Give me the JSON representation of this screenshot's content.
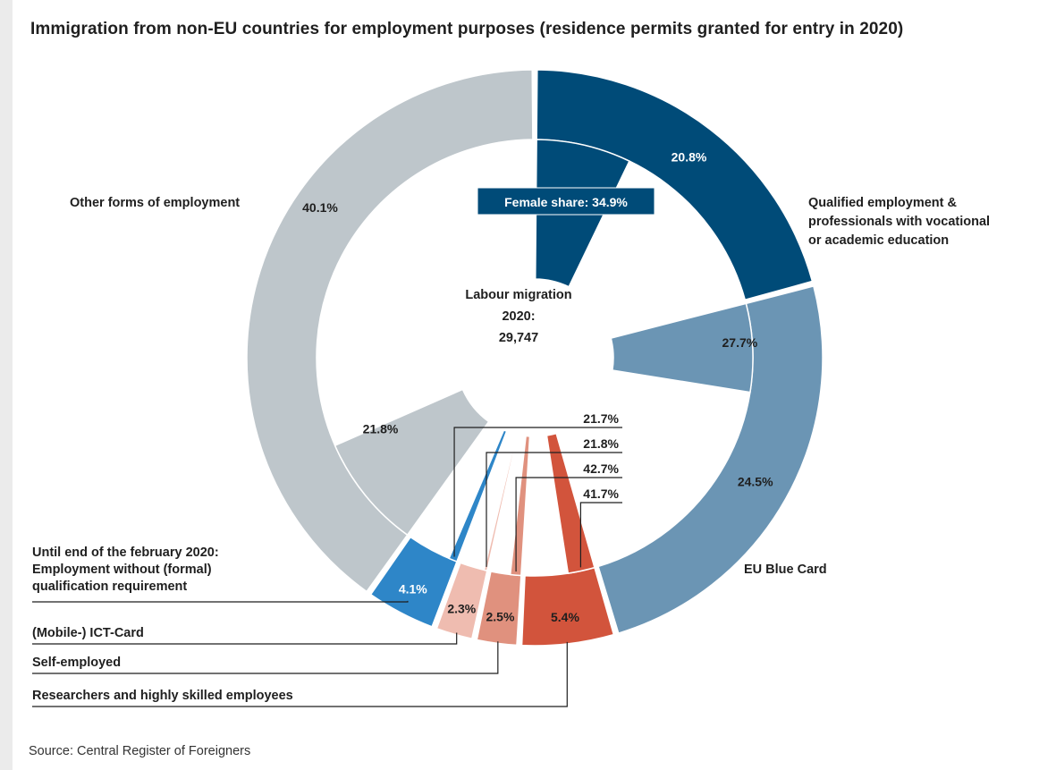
{
  "chart_data": {
    "type": "donut",
    "title": "Immigration from non-EU countries for employment purposes (residence permits granted for entry in 2020)",
    "center_label": [
      "Labour migration",
      "2020:",
      "29,747"
    ],
    "total": 29747,
    "series": [
      {
        "label": "Qualified employment & professionals with vocational or academic education",
        "label_lines": [
          "Qualified employment &",
          "professionals with vocational",
          "or academic education"
        ],
        "share": 20.8,
        "share_label": "20.8%",
        "female_share": 34.9,
        "female_label": "34.9%",
        "color": "#004b78"
      },
      {
        "label": "EU Blue Card",
        "label_lines": [
          "EU Blue Card"
        ],
        "share": 24.5,
        "share_label": "24.5%",
        "female_share": 27.7,
        "female_label": "27.7%",
        "color": "#6b95b4"
      },
      {
        "label": "Researchers and highly skilled employees",
        "label_lines": [
          "Researchers and highly skilled employees"
        ],
        "share": 5.4,
        "share_label": "5.4%",
        "female_share": 41.7,
        "female_label": "41.7%",
        "color": "#d2543c"
      },
      {
        "label": "Self-employed",
        "label_lines": [
          "Self-employed"
        ],
        "share": 2.5,
        "share_label": "2.5%",
        "female_share": 42.7,
        "female_label": "42.7%",
        "color": "#e0917e"
      },
      {
        "label": "(Mobile-) ICT-Card",
        "label_lines": [
          "(Mobile-) ICT-Card"
        ],
        "share": 2.3,
        "share_label": "2.3%",
        "female_share": 21.8,
        "female_label": "21.8%",
        "color": "#efbcb0"
      },
      {
        "label": "Until end of the february 2020: Employment without (formal) qualification requirement",
        "label_lines": [
          "Until end of the february 2020:",
          "Employment without (formal)",
          "qualification requirement"
        ],
        "share": 4.1,
        "share_label": "4.1%",
        "female_share": 21.7,
        "female_label": "21.7%",
        "color": "#2e86c8"
      },
      {
        "label": "Other forms of employment",
        "label_lines": [
          "Other forms of employment"
        ],
        "share": 40.1,
        "share_label": "40.1%",
        "female_share": 21.8,
        "female_label": "21.8%",
        "color": "#bec6cb"
      }
    ],
    "legend_text": "Female share: 34.9%"
  },
  "source": "Source: Central Register of Foreigners"
}
